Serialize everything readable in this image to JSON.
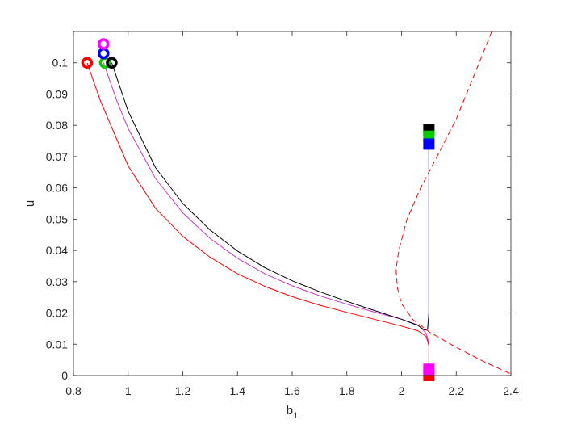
{
  "chart_data": {
    "type": "line",
    "xlabel": "b",
    "xlabel_subscript": "1",
    "ylabel": "u",
    "xlim": [
      0.8,
      2.4
    ],
    "ylim": [
      0,
      0.11
    ],
    "xticks": [
      0.8,
      1,
      1.2,
      1.4,
      1.6,
      1.8,
      2,
      2.2,
      2.4
    ],
    "xtick_labels": [
      "0.8",
      "1",
      "1.2",
      "1.4",
      "1.6",
      "1.8",
      "2",
      "2.2",
      "2.4"
    ],
    "yticks": [
      0,
      0.01,
      0.02,
      0.03,
      0.04,
      0.05,
      0.06,
      0.07,
      0.08,
      0.09,
      0.1
    ],
    "ytick_labels": [
      "0",
      "0.01",
      "0.02",
      "0.03",
      "0.04",
      "0.05",
      "0.06",
      "0.07",
      "0.08",
      "0.09",
      "0.1"
    ],
    "grid": false,
    "box": true,
    "series": [
      {
        "color": "#ff0000",
        "style": "solid",
        "start_marker": "circle",
        "end_marker": "square",
        "points": [
          [
            0.85,
            0.1
          ],
          [
            0.9,
            0.0875
          ],
          [
            1.0,
            0.067
          ],
          [
            1.1,
            0.0535
          ],
          [
            1.2,
            0.0445
          ],
          [
            1.3,
            0.0378
          ],
          [
            1.4,
            0.0325
          ],
          [
            1.5,
            0.0285
          ],
          [
            1.6,
            0.0252
          ],
          [
            1.7,
            0.0225
          ],
          [
            1.8,
            0.0202
          ],
          [
            1.9,
            0.018
          ],
          [
            2.0,
            0.0158
          ],
          [
            2.06,
            0.0143
          ],
          [
            2.09,
            0.0125
          ],
          [
            2.1,
            0.0095
          ],
          [
            2.1,
            0.0
          ]
        ]
      },
      {
        "color": "#cc33cc",
        "style": "solid",
        "start_marker": "circle",
        "end_marker": "square",
        "points": [
          [
            0.91,
            0.1
          ],
          [
            0.96,
            0.0875
          ],
          [
            1.0,
            0.079
          ],
          [
            1.1,
            0.063
          ],
          [
            1.2,
            0.052
          ],
          [
            1.3,
            0.0438
          ],
          [
            1.4,
            0.0375
          ],
          [
            1.5,
            0.0325
          ],
          [
            1.6,
            0.0287
          ],
          [
            1.7,
            0.0255
          ],
          [
            1.8,
            0.0228
          ],
          [
            1.9,
            0.0203
          ],
          [
            2.0,
            0.018
          ],
          [
            2.06,
            0.0162
          ],
          [
            2.09,
            0.0135
          ],
          [
            2.1,
            0.0105
          ],
          [
            2.1,
            0.002
          ]
        ]
      },
      {
        "color": "#000000",
        "style": "solid",
        "start_marker": "circle",
        "end_marker": "square",
        "points": [
          [
            0.94,
            0.1
          ],
          [
            1.0,
            0.0845
          ],
          [
            1.1,
            0.0665
          ],
          [
            1.2,
            0.055
          ],
          [
            1.3,
            0.0465
          ],
          [
            1.4,
            0.0398
          ],
          [
            1.5,
            0.0345
          ],
          [
            1.6,
            0.0303
          ],
          [
            1.7,
            0.0268
          ],
          [
            1.8,
            0.0237
          ],
          [
            1.9,
            0.0208
          ],
          [
            2.0,
            0.018
          ],
          [
            2.06,
            0.016
          ],
          [
            2.085,
            0.0145
          ],
          [
            2.095,
            0.0148
          ],
          [
            2.1,
            0.02
          ],
          [
            2.1,
            0.078
          ]
        ]
      },
      {
        "color": "#0000ff",
        "style": "solid",
        "start_marker": "circle",
        "end_marker": "square",
        "points": [
          [
            2.1,
            0.015
          ],
          [
            2.1,
            0.074
          ]
        ]
      },
      {
        "color": "#00cc00",
        "style": "none",
        "start_marker": "circle",
        "end_marker": "square",
        "points": [
          [
            0.92,
            0.1
          ],
          [
            2.1,
            0.0765
          ]
        ]
      },
      {
        "color": "#ff0000",
        "style": "dashed",
        "start_marker": "none",
        "end_marker": "none",
        "points": [
          [
            2.33,
            0.11
          ],
          [
            2.27,
            0.097
          ],
          [
            2.2,
            0.082
          ],
          [
            2.13,
            0.07
          ],
          [
            2.07,
            0.06
          ],
          [
            2.02,
            0.05
          ],
          [
            1.99,
            0.04
          ],
          [
            1.98,
            0.034
          ],
          [
            1.985,
            0.028
          ],
          [
            2.0,
            0.023
          ],
          [
            2.04,
            0.018
          ],
          [
            2.1,
            0.014
          ],
          [
            2.2,
            0.009
          ],
          [
            2.3,
            0.0045
          ],
          [
            2.4,
            0.0005
          ]
        ]
      }
    ],
    "start_markers": [
      {
        "color": "#ff0000",
        "point": [
          0.85,
          0.1
        ]
      },
      {
        "color": "#00cc00",
        "point": [
          0.915,
          0.1
        ]
      },
      {
        "color": "#0000ff",
        "point": [
          0.91,
          0.103
        ]
      },
      {
        "color": "#ff00ff",
        "point": [
          0.91,
          0.106
        ]
      },
      {
        "color": "#000000",
        "point": [
          0.94,
          0.1
        ]
      }
    ],
    "end_markers": [
      {
        "color": "#ff0000",
        "point": [
          2.1,
          0.0
        ]
      },
      {
        "color": "#ff00ff",
        "point": [
          2.1,
          0.002
        ]
      },
      {
        "color": "#000000",
        "point": [
          2.1,
          0.0785
        ]
      },
      {
        "color": "#00cc00",
        "point": [
          2.1,
          0.0765
        ]
      },
      {
        "color": "#0000ff",
        "point": [
          2.1,
          0.074
        ]
      }
    ]
  }
}
